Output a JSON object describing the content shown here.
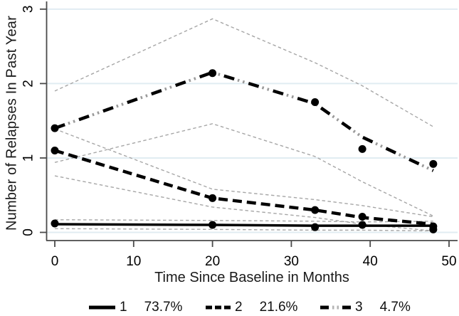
{
  "figure": {
    "background": "#ffffff",
    "axis_color": "#4a4a4a",
    "grid_color": "#e1ecf2",
    "ci_color": "#a6a6a6",
    "data_color": "#000000",
    "tick_label_color": "#000000"
  },
  "chart_data": {
    "type": "line",
    "title": "",
    "xlabel": "Time Since Baseline in Months",
    "ylabel": "Number of Relapses In Past Year",
    "xticks": [
      0,
      10,
      20,
      30,
      40,
      50
    ],
    "yticks": [
      0,
      1,
      2,
      3
    ],
    "xlim": [
      -1,
      51
    ],
    "ylim": [
      -0.1,
      3.1
    ],
    "grid": "horizontal-at-yticks",
    "legend_position": "bottom",
    "x": [
      0,
      20,
      33,
      39,
      48
    ],
    "series": [
      {
        "name": "1",
        "percent": "73.7%",
        "style": "solid",
        "line": [
          0.11,
          0.1,
          0.09,
          0.09,
          0.09
        ],
        "markers": [
          0.12,
          0.1,
          0.07,
          0.1,
          0.08
        ],
        "ci_upper": [
          0.17,
          0.16,
          0.15,
          0.14,
          0.15
        ],
        "ci_lower": [
          0.05,
          0.04,
          0.03,
          0.03,
          0.02
        ]
      },
      {
        "name": "2",
        "percent": "21.6%",
        "style": "dashed",
        "line": [
          1.1,
          0.46,
          0.3,
          0.2,
          0.11
        ],
        "markers": [
          1.1,
          0.46,
          0.3,
          0.21,
          0.04
        ],
        "ci_upper": [
          1.39,
          0.58,
          0.44,
          0.36,
          0.21
        ],
        "ci_lower": [
          0.76,
          0.34,
          0.2,
          0.11,
          0.02
        ]
      },
      {
        "name": "3",
        "percent": "4.7%",
        "style": "dash-dot-dot",
        "line": [
          1.4,
          2.15,
          1.73,
          1.28,
          0.83
        ],
        "markers": [
          1.4,
          2.14,
          1.75,
          1.12,
          0.92
        ],
        "ci_upper": [
          1.9,
          2.87,
          2.28,
          1.97,
          1.42
        ],
        "ci_lower": [
          0.94,
          1.46,
          1.02,
          0.68,
          0.22
        ]
      }
    ]
  }
}
